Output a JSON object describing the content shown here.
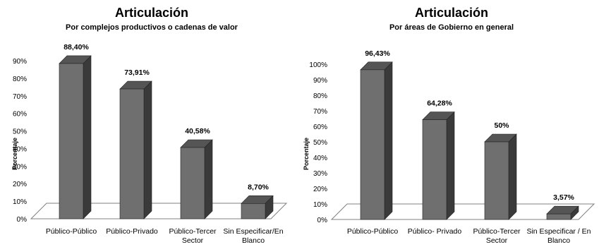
{
  "chart_data": [
    {
      "type": "bar",
      "title": "Articulación",
      "subtitle": "Por complejos productivos o cadenas de valor",
      "ylabel": "Porcentaje",
      "ylim": [
        0,
        90
      ],
      "yticks": [
        "0%",
        "10%",
        "20%",
        "30%",
        "40%",
        "50%",
        "60%",
        "70%",
        "80%",
        "90%"
      ],
      "categories": [
        [
          "Público-Público"
        ],
        [
          "Público-Privado"
        ],
        [
          "Público-Tercer",
          "Sector"
        ],
        [
          "Sin Especificar/En",
          "Blanco"
        ]
      ],
      "values": [
        88.4,
        73.91,
        40.58,
        8.7
      ],
      "data_labels": [
        "88,40%",
        "73,91%",
        "40,58%",
        "8,70%"
      ],
      "grid": false,
      "style": "3d-column",
      "colors": {
        "bar_front": "#6f6f6f",
        "bar_side": "#3a3a3a",
        "bar_top": "#555555",
        "floor": "#ffffff",
        "floor_line": "#808080"
      }
    },
    {
      "type": "bar",
      "title": "Articulación",
      "subtitle": "Por áreas de Gobierno en general",
      "ylabel": "Porcentaje",
      "ylim": [
        0,
        100
      ],
      "yticks": [
        "0%",
        "10%",
        "20%",
        "30%",
        "40%",
        "50%",
        "60%",
        "70%",
        "80%",
        "90%",
        "100%"
      ],
      "categories": [
        [
          "Público-Público"
        ],
        [
          "Público- Privado"
        ],
        [
          "Público-Tercer",
          "Sector"
        ],
        [
          "Sin Especificar / En",
          "Blanco"
        ]
      ],
      "values": [
        96.43,
        64.28,
        50,
        3.57
      ],
      "data_labels": [
        "96,43%",
        "64,28%",
        "50%",
        "3,57%"
      ],
      "grid": false,
      "style": "3d-column",
      "colors": {
        "bar_front": "#6f6f6f",
        "bar_side": "#3a3a3a",
        "bar_top": "#555555",
        "floor": "#ffffff",
        "floor_line": "#808080"
      }
    }
  ]
}
